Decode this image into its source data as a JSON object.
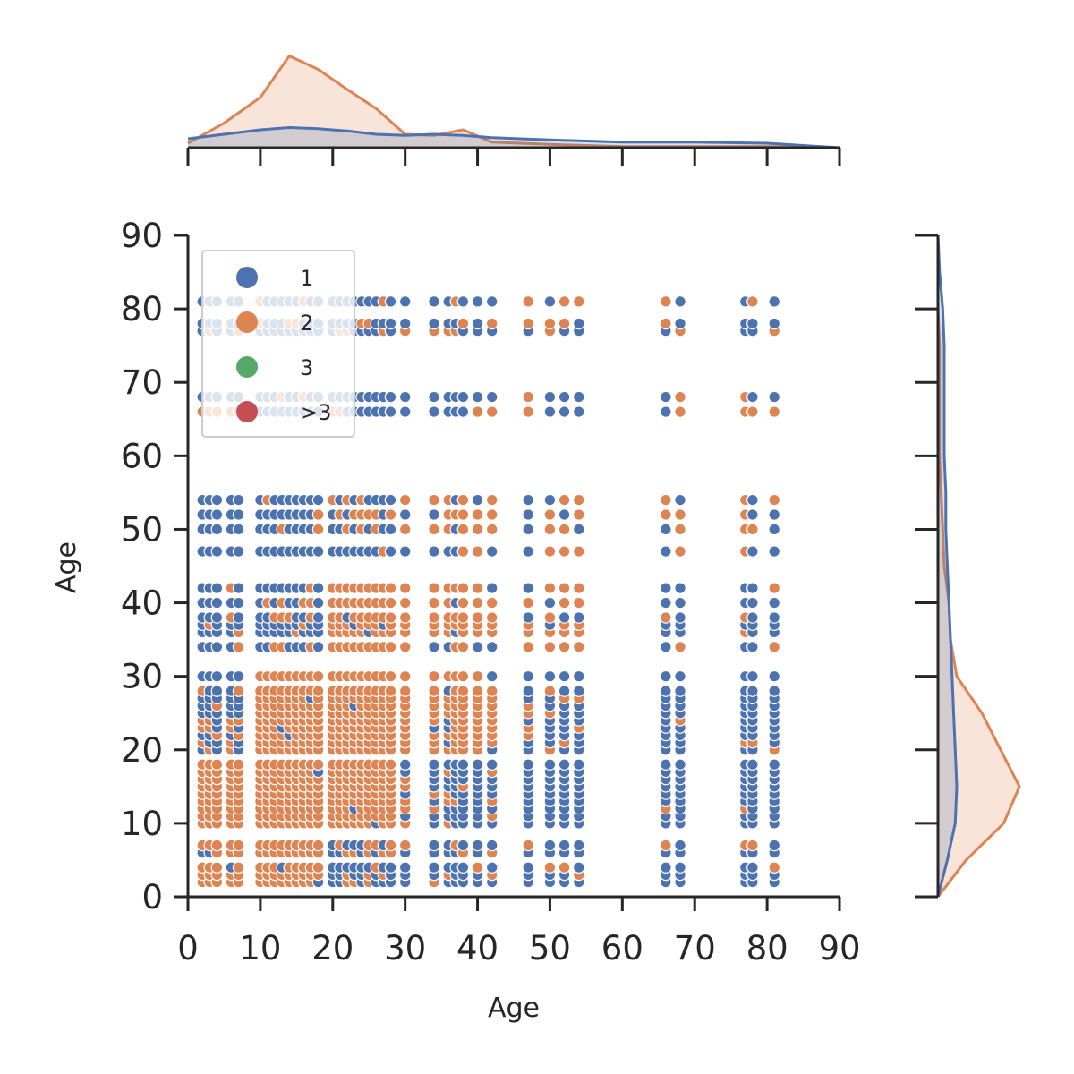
{
  "chart_data": {
    "type": "scatter",
    "xlabel": "Age",
    "ylabel": "Age",
    "xlim": [
      0,
      90
    ],
    "ylim": [
      0,
      90
    ],
    "x_ticks": [
      "0",
      "10",
      "20",
      "30",
      "40",
      "50",
      "60",
      "70",
      "80",
      "90"
    ],
    "y_ticks": [
      "0",
      "10",
      "20",
      "30",
      "40",
      "50",
      "60",
      "70",
      "80",
      "90"
    ],
    "grid": false,
    "legend_position": "top-left",
    "legend": [
      {
        "label": "1",
        "color": "#4c72b0"
      },
      {
        "label": "2",
        "color": "#dd8452"
      },
      {
        "label": "3",
        "color": "#55a868"
      },
      {
        "label": ">3",
        "color": "#c44e52"
      }
    ],
    "x_values": [
      2,
      3,
      4,
      6,
      7,
      10,
      11,
      12,
      13,
      14,
      15,
      16,
      17,
      18,
      20,
      21,
      22,
      23,
      24,
      25,
      26,
      27,
      28,
      30,
      34,
      36,
      37,
      38,
      40,
      42,
      47,
      50,
      52,
      54,
      66,
      68,
      77,
      78,
      81
    ],
    "y_values": [
      2,
      3,
      4,
      6,
      7,
      10,
      11,
      12,
      13,
      14,
      15,
      16,
      17,
      18,
      20,
      21,
      22,
      23,
      24,
      25,
      26,
      27,
      28,
      30,
      34,
      36,
      37,
      38,
      40,
      42,
      47,
      50,
      52,
      54,
      66,
      68,
      77,
      78,
      81
    ],
    "series_note_1": "dense grid of points at all x_values by y_values pairs; group 1 (blue) dominates high x and high y, group 2 (orange) dominates x 2-30 and y 2-30",
    "marginal_top": {
      "x": [
        0,
        5,
        10,
        14,
        18,
        22,
        26,
        30,
        34,
        38,
        42,
        50,
        60,
        70,
        80,
        90
      ],
      "series": [
        {
          "name": "1",
          "color": "#4c72b0",
          "density": [
            0.008,
            0.012,
            0.016,
            0.018,
            0.017,
            0.015,
            0.012,
            0.011,
            0.012,
            0.011,
            0.009,
            0.007,
            0.005,
            0.005,
            0.004,
            0.0
          ]
        },
        {
          "name": "2",
          "color": "#dd8452",
          "density": [
            0.004,
            0.022,
            0.045,
            0.082,
            0.07,
            0.052,
            0.035,
            0.012,
            0.011,
            0.016,
            0.005,
            0.003,
            0.001,
            0.001,
            0.001,
            0.0
          ]
        }
      ]
    },
    "marginal_right": {
      "y": [
        0,
        5,
        10,
        15,
        20,
        25,
        30,
        35,
        40,
        45,
        50,
        55,
        60,
        65,
        70,
        75,
        80,
        85,
        90
      ],
      "series": [
        {
          "name": "1",
          "color": "#4c72b0",
          "density": [
            0.0,
            0.006,
            0.011,
            0.012,
            0.011,
            0.01,
            0.009,
            0.008,
            0.007,
            0.006,
            0.005,
            0.005,
            0.004,
            0.004,
            0.004,
            0.004,
            0.003,
            0.001,
            0.0
          ]
        },
        {
          "name": "2",
          "color": "#dd8452",
          "density": [
            0.0,
            0.018,
            0.042,
            0.052,
            0.04,
            0.028,
            0.012,
            0.008,
            0.007,
            0.004,
            0.003,
            0.002,
            0.001,
            0.001,
            0.001,
            0.001,
            0.0,
            0.0,
            0.0
          ]
        }
      ]
    }
  }
}
